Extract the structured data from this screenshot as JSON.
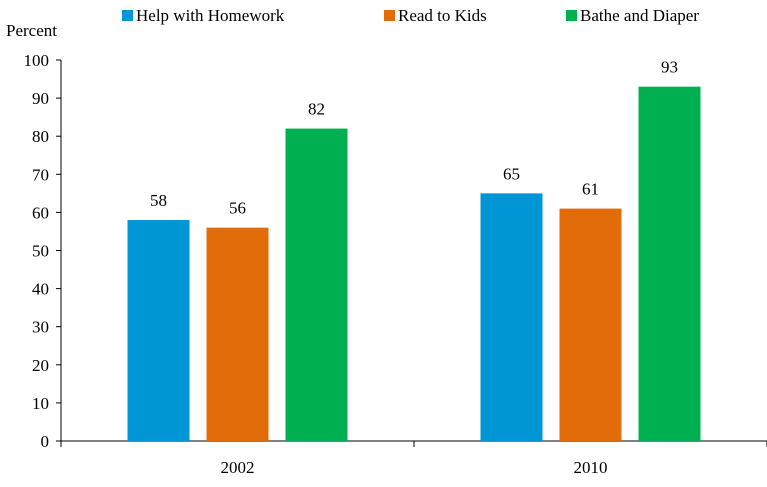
{
  "chart_data": {
    "type": "bar",
    "ylabel": "Percent",
    "categories": [
      "2002",
      "2010"
    ],
    "ylim": [
      0,
      100
    ],
    "yticks": [
      0,
      10,
      20,
      30,
      40,
      50,
      60,
      70,
      80,
      90,
      100
    ],
    "grid": false,
    "legend_position": "top",
    "data_labels": true,
    "series": [
      {
        "name": "Help with Homework",
        "color": "#0096D6",
        "values": [
          58,
          65
        ]
      },
      {
        "name": "Read to Kids",
        "color": "#E36C0A",
        "values": [
          56,
          61
        ]
      },
      {
        "name": "Bathe and Diaper",
        "color": "#00B050",
        "values": [
          82,
          93
        ]
      }
    ]
  }
}
